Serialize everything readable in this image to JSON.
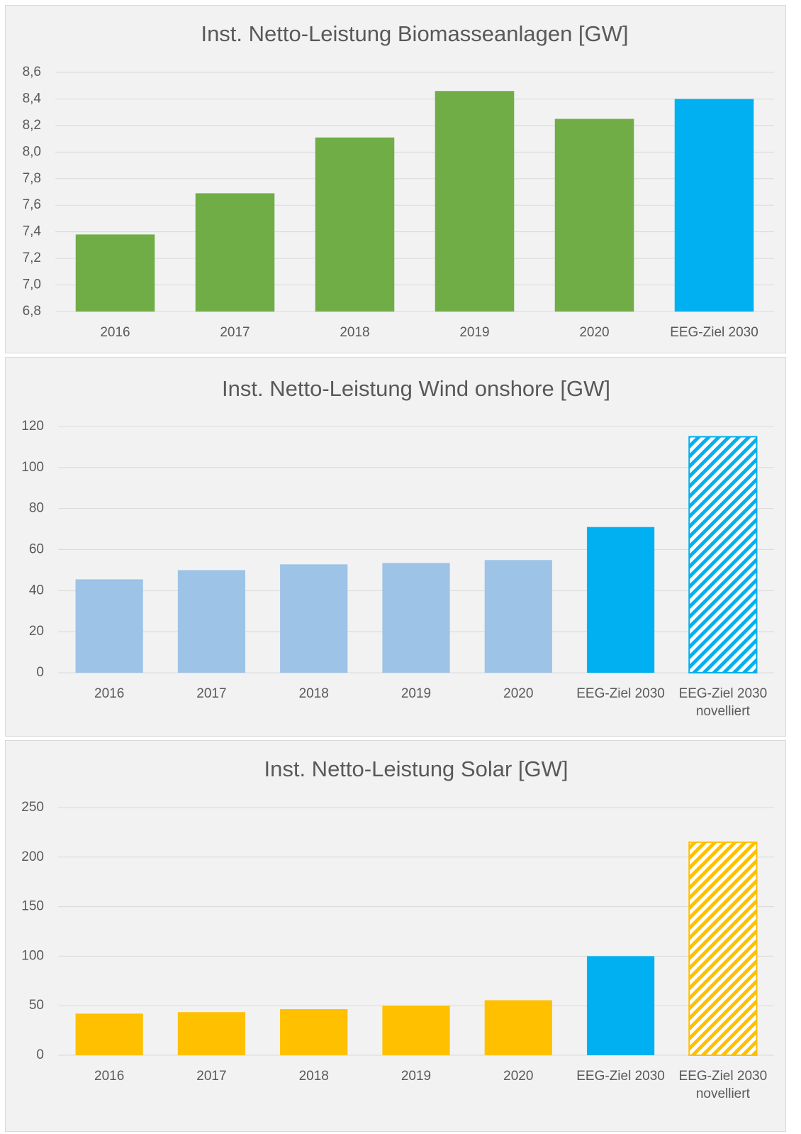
{
  "chart_data": [
    {
      "type": "bar",
      "title": "Inst. Netto-Leistung Biomasseanlagen [GW]",
      "categories": [
        "2016",
        "2017",
        "2018",
        "2019",
        "2020",
        "EEG-Ziel 2030"
      ],
      "values": [
        7.38,
        7.69,
        8.11,
        8.46,
        8.25,
        8.4
      ],
      "colors": [
        "#70ad47",
        "#70ad47",
        "#70ad47",
        "#70ad47",
        "#70ad47",
        "#00b0f0"
      ],
      "hatched": [
        false,
        false,
        false,
        false,
        false,
        false
      ],
      "ylim": [
        6.8,
        8.6
      ],
      "yticks": [
        {
          "value": 6.8,
          "label": "6,8"
        },
        {
          "value": 7.0,
          "label": "7,0"
        },
        {
          "value": 7.2,
          "label": "7,2"
        },
        {
          "value": 7.4,
          "label": "7,4"
        },
        {
          "value": 7.6,
          "label": "7,6"
        },
        {
          "value": 7.8,
          "label": "7,8"
        },
        {
          "value": 8.0,
          "label": "8,0"
        },
        {
          "value": 8.2,
          "label": "8,2"
        },
        {
          "value": 8.4,
          "label": "8,4"
        },
        {
          "value": 8.6,
          "label": "8,6"
        }
      ],
      "grid": true
    },
    {
      "type": "bar",
      "title": "Inst. Netto-Leistung Wind onshore [GW]",
      "categories": [
        "2016",
        "2017",
        "2018",
        "2019",
        "2020",
        "EEG-Ziel 2030",
        "EEG-Ziel 2030 novelliert"
      ],
      "values": [
        45.5,
        50,
        52.8,
        53.5,
        54.9,
        71,
        115
      ],
      "colors": [
        "#9dc3e6",
        "#9dc3e6",
        "#9dc3e6",
        "#9dc3e6",
        "#9dc3e6",
        "#00b0f0",
        "#00b0f0"
      ],
      "hatched": [
        false,
        false,
        false,
        false,
        false,
        false,
        true
      ],
      "ylim": [
        0,
        120
      ],
      "yticks": [
        0,
        20,
        40,
        60,
        80,
        100,
        120
      ],
      "grid": true
    },
    {
      "type": "bar",
      "title": "Inst. Netto-Leistung Solar [GW]",
      "categories": [
        "2016",
        "2017",
        "2018",
        "2019",
        "2020",
        "EEG-Ziel 2030",
        "EEG-Ziel 2030 novelliert"
      ],
      "values": [
        42,
        43.5,
        46.5,
        50,
        55.5,
        100,
        215
      ],
      "colors": [
        "#ffc000",
        "#ffc000",
        "#ffc000",
        "#ffc000",
        "#ffc000",
        "#00b0f0",
        "#ffc000"
      ],
      "hatched": [
        false,
        false,
        false,
        false,
        false,
        false,
        true
      ],
      "ylim": [
        0,
        250
      ],
      "yticks": [
        0,
        50,
        100,
        150,
        200,
        250
      ],
      "grid": true
    }
  ]
}
